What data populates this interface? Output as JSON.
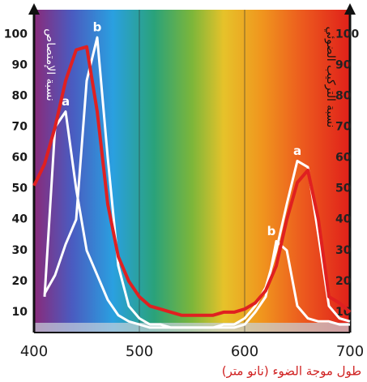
{
  "chart_data": {
    "type": "line",
    "title_y": "نسبة الإمتصاص",
    "title_y2": "نسبة التركيب الضوئي",
    "title_x": "طول موجة الضوء (نانو متر)",
    "x": [
      400,
      410,
      420,
      430,
      440,
      450,
      460,
      470,
      480,
      490,
      500,
      510,
      520,
      530,
      540,
      550,
      560,
      570,
      580,
      590,
      600,
      610,
      620,
      630,
      640,
      650,
      660,
      670,
      680,
      690,
      700
    ],
    "series": [
      {
        "name": "a",
        "color": "#ffffff",
        "values": [
          null,
          15,
          70,
          75,
          50,
          30,
          22,
          14,
          9,
          7,
          6,
          5,
          5,
          5,
          5,
          5,
          5,
          5,
          6,
          6,
          8,
          12,
          18,
          30,
          45,
          59,
          57,
          35,
          12,
          8,
          7
        ]
      },
      {
        "name": "b",
        "color": "#ffffff",
        "values": [
          null,
          16,
          22,
          32,
          40,
          85,
          99,
          60,
          25,
          12,
          8,
          6,
          6,
          5,
          5,
          5,
          5,
          5,
          5,
          5,
          6,
          10,
          15,
          33,
          30,
          12,
          8,
          7,
          7,
          6,
          6
        ]
      },
      {
        "color": "#e02020",
        "axis": "y2",
        "values": [
          51,
          58,
          70,
          85,
          95,
          96,
          75,
          45,
          28,
          20,
          15,
          12,
          11,
          10,
          9,
          9,
          9,
          9,
          10,
          10,
          11,
          13,
          17,
          25,
          40,
          52,
          56,
          40,
          15,
          13,
          10
        ]
      }
    ],
    "xlim": [
      400,
      700
    ],
    "xticks": [
      400,
      500,
      600,
      700
    ],
    "ylim": [
      3.4,
      108
    ],
    "yticks": [
      10,
      20,
      30,
      40,
      50,
      60,
      70,
      80,
      90,
      100
    ],
    "y2lim": [
      3.4,
      108
    ],
    "y2ticks": [
      10,
      20,
      30,
      40,
      50,
      60,
      70,
      80,
      90,
      100
    ],
    "grid": true
  }
}
